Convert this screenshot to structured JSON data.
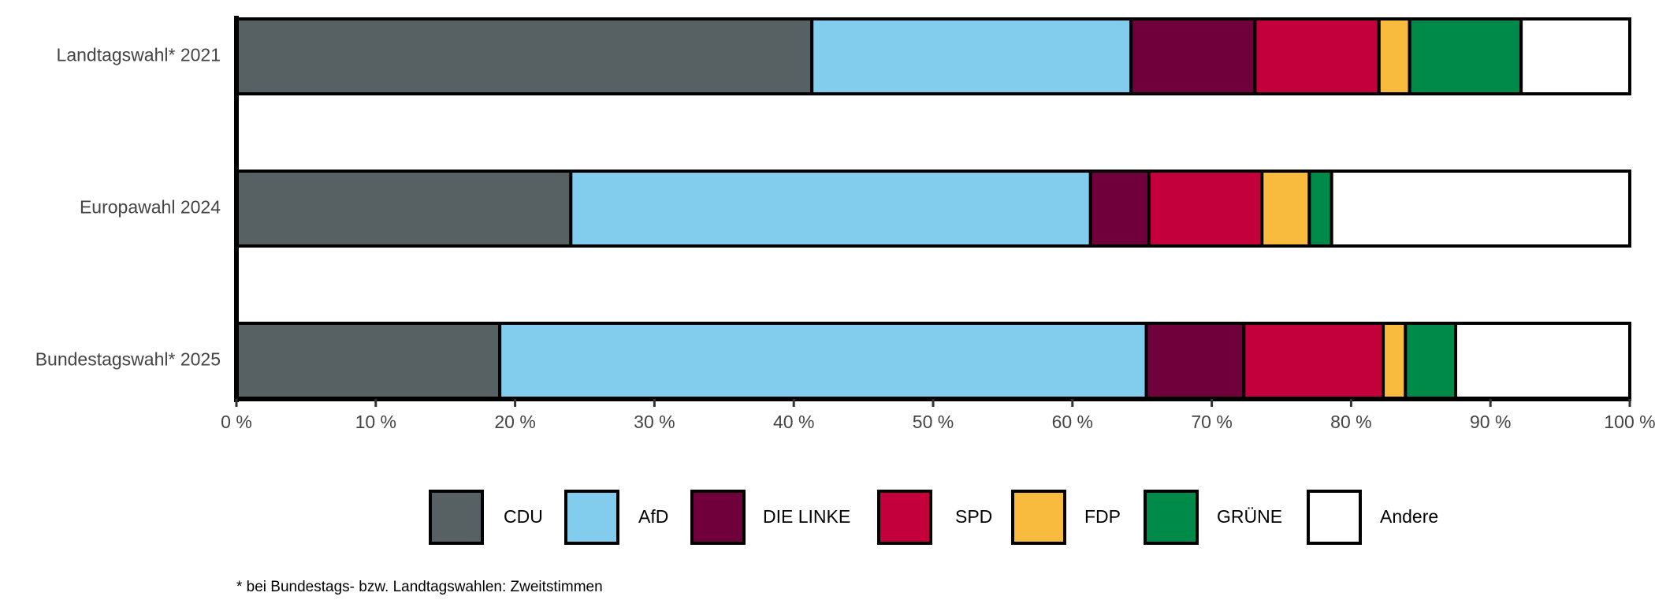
{
  "chart_data": {
    "type": "stacked-barh",
    "categories": [
      "Landtagswahl* 2021",
      "Europawahl 2024",
      "Bundestagswahl* 2025"
    ],
    "series": [
      {
        "name": "CDU",
        "color": "#576062",
        "values": [
          41.3,
          24.0,
          18.9
        ]
      },
      {
        "name": "AfD",
        "color": "#82cdee",
        "values": [
          22.9,
          37.3,
          46.4
        ]
      },
      {
        "name": "DIE LINKE",
        "color": "#6f003c",
        "values": [
          8.9,
          4.2,
          7.0
        ]
      },
      {
        "name": "SPD",
        "color": "#c3003c",
        "values": [
          8.9,
          8.1,
          10.0
        ]
      },
      {
        "name": "FDP",
        "color": "#f8bb3e",
        "values": [
          2.2,
          3.4,
          1.6
        ]
      },
      {
        "name": "GRÜNE",
        "color": "#008a4a",
        "values": [
          8.0,
          1.6,
          3.6
        ]
      },
      {
        "name": "Andere",
        "color": "#ffffff",
        "values": [
          7.8,
          21.4,
          12.5
        ]
      }
    ],
    "xlim": [
      0,
      100
    ],
    "xticks": [
      {
        "value": 0,
        "label": "0 %"
      },
      {
        "value": 10,
        "label": "10 %"
      },
      {
        "value": 20,
        "label": "20 %"
      },
      {
        "value": 30,
        "label": "30 %"
      },
      {
        "value": 40,
        "label": "40 %"
      },
      {
        "value": 50,
        "label": "50 %"
      },
      {
        "value": 60,
        "label": "60 %"
      },
      {
        "value": 70,
        "label": "70 %"
      },
      {
        "value": 80,
        "label": "80 %"
      },
      {
        "value": 90,
        "label": "90 %"
      },
      {
        "value": 100,
        "label": "100 %"
      }
    ],
    "legend": "bottom",
    "footnote": "* bei Bundestags- bzw. Landtagswahlen: Zweitstimmen"
  }
}
